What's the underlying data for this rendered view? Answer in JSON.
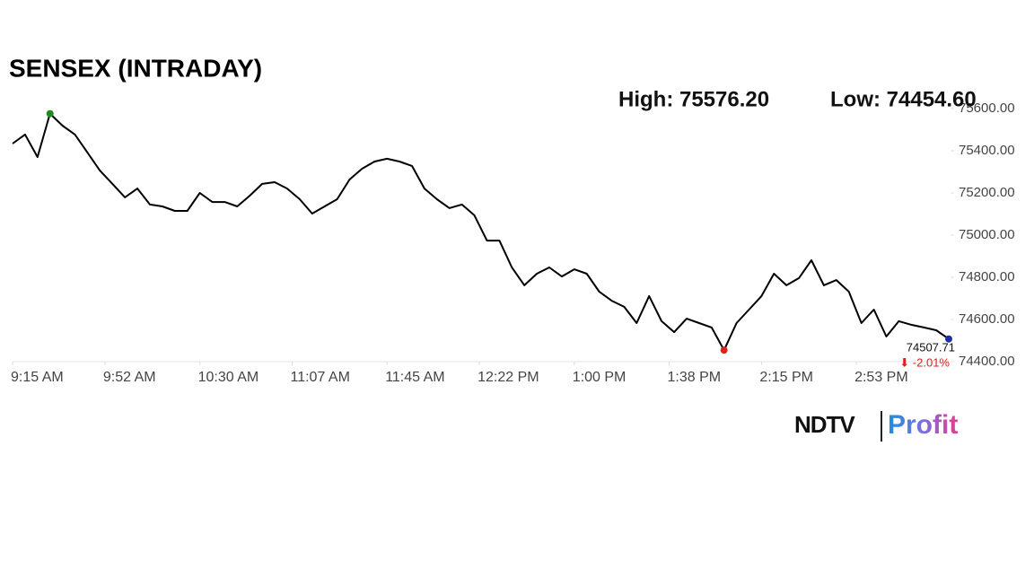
{
  "chart_data": {
    "type": "line",
    "title": "SENSEX (INTRADAY)",
    "x": [
      "9:15 AM",
      "9:20 AM",
      "9:25 AM",
      "9:30 AM",
      "9:35 AM",
      "9:40 AM",
      "9:45 AM",
      "9:50 AM",
      "9:55 AM",
      "10:00 AM",
      "10:05 AM",
      "10:10 AM",
      "10:15 AM",
      "10:20 AM",
      "10:25 AM",
      "10:30 AM",
      "10:35 AM",
      "10:40 AM",
      "10:45 AM",
      "10:50 AM",
      "10:55 AM",
      "11:00 AM",
      "11:05 AM",
      "11:10 AM",
      "11:15 AM",
      "11:20 AM",
      "11:25 AM",
      "11:30 AM",
      "11:35 AM",
      "11:40 AM",
      "11:45 AM",
      "11:50 AM",
      "11:55 AM",
      "12:00 PM",
      "12:05 PM",
      "12:10 PM",
      "12:15 PM",
      "12:20 PM",
      "12:25 PM",
      "12:30 PM",
      "12:35 PM",
      "12:40 PM",
      "12:45 PM",
      "12:50 PM",
      "12:55 PM",
      "1:00 PM",
      "1:05 PM",
      "1:10 PM",
      "1:15 PM",
      "1:20 PM",
      "1:25 PM",
      "1:30 PM",
      "1:35 PM",
      "1:40 PM",
      "1:45 PM",
      "1:50 PM",
      "1:55 PM",
      "2:00 PM",
      "2:05 PM",
      "2:10 PM",
      "2:15 PM",
      "2:20 PM",
      "2:25 PM",
      "2:30 PM",
      "2:35 PM",
      "2:40 PM",
      "2:45 PM",
      "2:50 PM",
      "2:55 PM",
      "3:00 PM",
      "3:05 PM",
      "3:10 PM",
      "3:15 PM",
      "3:20 PM",
      "3:25 PM",
      "3:30 PM"
    ],
    "series": [
      {
        "name": "SENSEX",
        "color": "#000000",
        "values": [
          75434,
          75477,
          75370,
          75576.2,
          75519,
          75477,
          75392,
          75306,
          75243,
          75179,
          75221,
          75145,
          75136,
          75115,
          75115,
          75200,
          75157,
          75157,
          75136,
          75187,
          75243,
          75251,
          75221,
          75170,
          75102,
          75136,
          75170,
          75264,
          75315,
          75349,
          75362,
          75349,
          75328,
          75221,
          75170,
          75128,
          75145,
          75094,
          74974,
          74974,
          74847,
          74762,
          74817,
          74847,
          74804,
          74838,
          74817,
          74732,
          74689,
          74660,
          74583,
          74711,
          74592,
          74540,
          74604,
          74583,
          74562,
          74454.6,
          74583,
          74647,
          74711,
          74817,
          74762,
          74796,
          74881,
          74762,
          74787,
          74732,
          74583,
          74647,
          74519,
          74592,
          74575,
          74562,
          74549,
          74507.71
        ]
      }
    ],
    "xlim": [
      "9:15 AM",
      "3:30 PM"
    ],
    "xticks": [
      "9:15 AM",
      "9:52 AM",
      "10:30 AM",
      "11:07 AM",
      "11:45 AM",
      "12:22 PM",
      "1:00 PM",
      "1:38 PM",
      "2:15 PM",
      "2:53 PM"
    ],
    "ylim": [
      74400,
      75600
    ],
    "yticks": [
      {
        "value": 74400,
        "label": "74400.00"
      },
      {
        "value": 74600,
        "label": "74600.00"
      },
      {
        "value": 74800,
        "label": "74800.00"
      },
      {
        "value": 75000,
        "label": "75000.00"
      },
      {
        "value": 75200,
        "label": "75200.00"
      },
      {
        "value": 75400,
        "label": "75400.00"
      },
      {
        "value": 75600,
        "label": "75600.00"
      }
    ],
    "annotations": [
      {
        "text": "High: 75576.20",
        "value": 75576.2,
        "x": "9:30 AM",
        "color": "#1f8a1f"
      },
      {
        "text": "Low: 74454.60",
        "value": 74454.6,
        "x": "2:00 PM",
        "color": "#e0201b"
      },
      {
        "text": "74507.71",
        "value": 74507.71,
        "x": "3:30 PM",
        "color": "#1c2fa8",
        "change": "⬇ -2.01%",
        "change_color": "#e0201b"
      }
    ]
  },
  "logo": {
    "brand": "NDTV",
    "product": "Profit"
  }
}
